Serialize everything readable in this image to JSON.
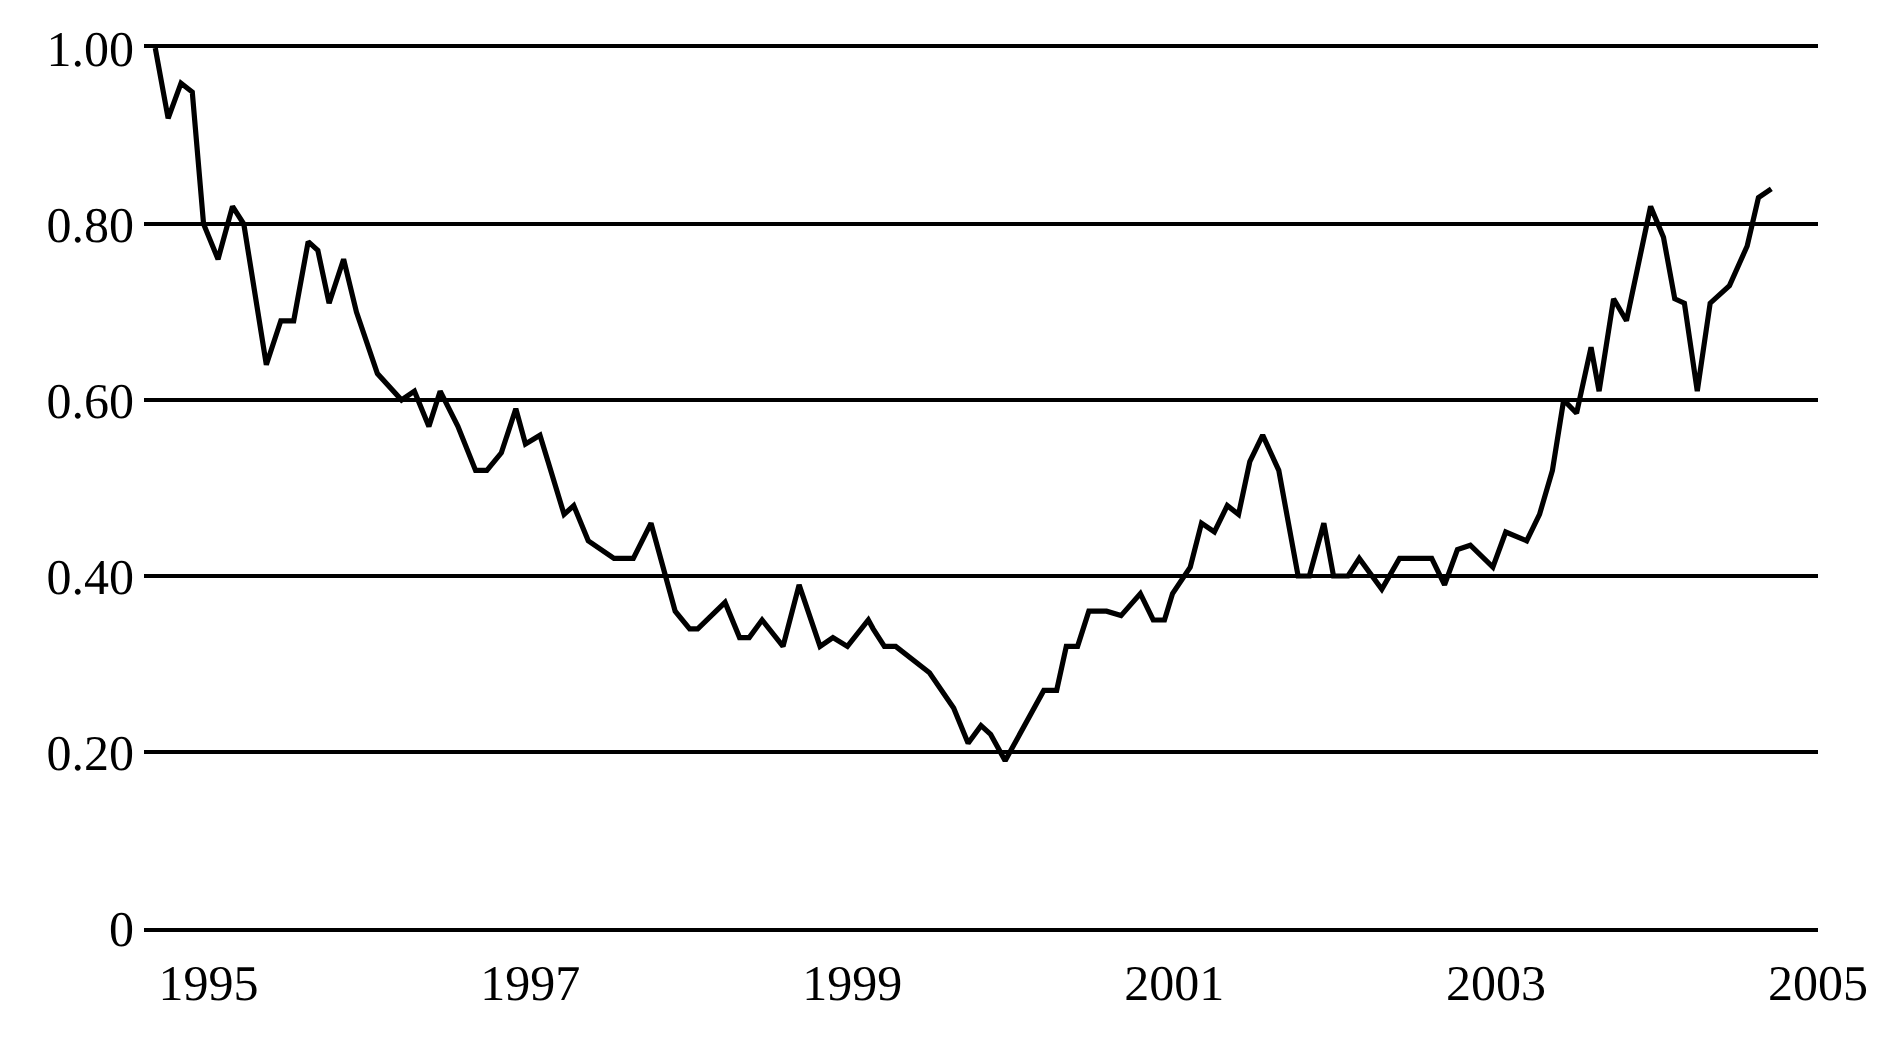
{
  "chart_data": {
    "type": "line",
    "x": [
      1994.67,
      1994.75,
      1994.83,
      1994.9,
      1994.97,
      1995.06,
      1995.15,
      1995.22,
      1995.36,
      1995.45,
      1995.53,
      1995.62,
      1995.68,
      1995.75,
      1995.84,
      1995.92,
      1996.05,
      1996.2,
      1996.28,
      1996.37,
      1996.44,
      1996.55,
      1996.66,
      1996.73,
      1996.82,
      1996.91,
      1996.97,
      1997.06,
      1997.11,
      1997.21,
      1997.27,
      1997.36,
      1997.52,
      1997.64,
      1997.75,
      1997.9,
      1997.99,
      1998.04,
      1998.21,
      1998.3,
      1998.36,
      1998.44,
      1998.57,
      1998.67,
      1998.8,
      1998.88,
      1998.97,
      1999.1,
      1999.13,
      1999.2,
      1999.27,
      1999.48,
      1999.63,
      1999.72,
      1999.8,
      1999.86,
      1999.95,
      2000.19,
      2000.27,
      2000.33,
      2000.4,
      2000.47,
      2000.58,
      2000.67,
      2000.79,
      2000.87,
      2000.94,
      2000.99,
      2001.1,
      2001.17,
      2001.25,
      2001.33,
      2001.4,
      2001.47,
      2001.55,
      2001.65,
      2001.77,
      2001.84,
      2001.93,
      2001.99,
      2002.08,
      2002.15,
      2002.29,
      2002.4,
      2002.6,
      2002.68,
      2002.76,
      2002.84,
      2002.98,
      2003.06,
      2003.19,
      2003.27,
      2003.35,
      2003.42,
      2003.5,
      2003.59,
      2003.64,
      2003.73,
      2003.81,
      2003.96,
      2004.04,
      2004.11,
      2004.17,
      2004.25,
      2004.33,
      2004.45,
      2004.56,
      2004.63,
      2004.71
    ],
    "values": [
      1.0,
      0.92,
      0.96,
      0.95,
      0.8,
      0.76,
      0.82,
      0.8,
      0.64,
      0.69,
      0.69,
      0.78,
      0.77,
      0.71,
      0.76,
      0.7,
      0.63,
      0.6,
      0.61,
      0.57,
      0.61,
      0.57,
      0.52,
      0.52,
      0.54,
      0.59,
      0.55,
      0.56,
      0.53,
      0.47,
      0.48,
      0.44,
      0.42,
      0.42,
      0.46,
      0.36,
      0.34,
      0.34,
      0.37,
      0.33,
      0.33,
      0.35,
      0.32,
      0.39,
      0.32,
      0.33,
      0.32,
      0.35,
      0.34,
      0.32,
      0.32,
      0.29,
      0.25,
      0.21,
      0.23,
      0.22,
      0.19,
      0.27,
      0.27,
      0.32,
      0.32,
      0.36,
      0.36,
      0.355,
      0.38,
      0.35,
      0.35,
      0.38,
      0.41,
      0.46,
      0.45,
      0.48,
      0.47,
      0.53,
      0.56,
      0.52,
      0.4,
      0.4,
      0.46,
      0.4,
      0.4,
      0.42,
      0.385,
      0.42,
      0.42,
      0.39,
      0.43,
      0.435,
      0.41,
      0.45,
      0.44,
      0.47,
      0.52,
      0.6,
      0.585,
      0.66,
      0.61,
      0.715,
      0.69,
      0.82,
      0.785,
      0.715,
      0.71,
      0.61,
      0.71,
      0.73,
      0.775,
      0.83,
      0.84
    ],
    "color": "#000000",
    "xlim": [
      1994.6,
      2005.0
    ],
    "xticks": [
      1995,
      1997,
      1999,
      2001,
      2003,
      2005
    ],
    "ylim": [
      0,
      1.0
    ],
    "yticks": [
      {
        "value": 0,
        "label": "0"
      },
      {
        "value": 0.2,
        "label": "0.20"
      },
      {
        "value": 0.4,
        "label": "0.40"
      },
      {
        "value": 0.6,
        "label": "0.60"
      },
      {
        "value": 0.8,
        "label": "0.80"
      },
      {
        "value": 1.0,
        "label": "1.00"
      }
    ],
    "grid": "y",
    "marker": "none",
    "line_style": "solid"
  }
}
